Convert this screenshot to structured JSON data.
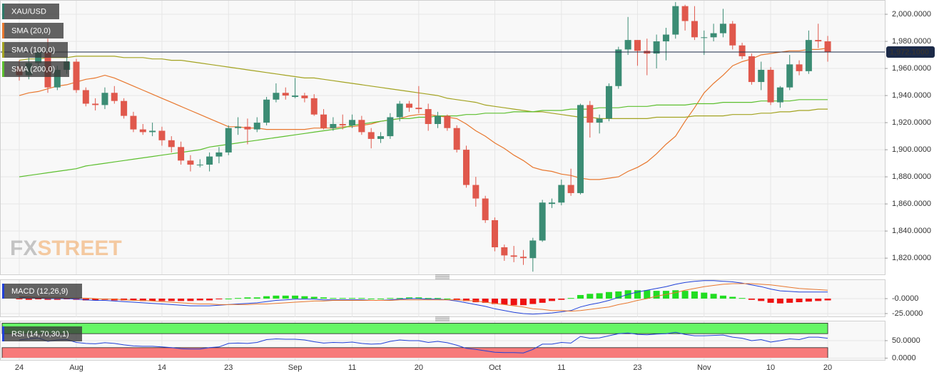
{
  "chart_data": [
    {
      "type": "candlestick",
      "name": "XAU/USD",
      "watermark": [
        "FX",
        "STREET"
      ],
      "categories": [
        "24",
        null,
        null,
        null,
        null,
        null,
        "Aug",
        null,
        null,
        null,
        null,
        null,
        null,
        null,
        null,
        "14",
        null,
        null,
        null,
        null,
        null,
        null,
        "23",
        null,
        null,
        null,
        null,
        null,
        null,
        "Sep",
        null,
        null,
        null,
        null,
        null,
        "11",
        null,
        null,
        null,
        null,
        null,
        null,
        "20",
        null,
        null,
        null,
        null,
        null,
        null,
        null,
        "Oct",
        null,
        null,
        null,
        null,
        null,
        null,
        "11",
        null,
        null,
        null,
        null,
        null,
        null,
        null,
        "23",
        null,
        null,
        null,
        null,
        null,
        null,
        "Nov",
        null,
        null,
        null,
        null,
        null,
        null,
        "10",
        null,
        null,
        null,
        null,
        null,
        "20"
      ],
      "open": [
        1961,
        1955,
        1964,
        1972,
        1946,
        1959,
        1965,
        1944,
        1934,
        1933,
        1942,
        1936,
        1925,
        1915,
        1913,
        1914,
        1907,
        1902,
        1892,
        1889,
        1889,
        1895,
        1898,
        1916,
        1917,
        1915,
        1920,
        1937,
        1942,
        1939,
        1940,
        1938,
        1926,
        1916,
        1919,
        1918,
        1922,
        1913,
        1908,
        1910,
        1924,
        1934,
        1931,
        1930,
        1919,
        1925,
        1916,
        1900,
        1874,
        1864,
        1848,
        1828,
        1822,
        1821,
        1820,
        1833,
        1860,
        1861,
        1874,
        1868,
        1933,
        1920,
        1923,
        1947,
        1974,
        1981,
        1973,
        1971,
        1980,
        1985,
        2006,
        1995,
        1983,
        1983,
        1986,
        1993,
        1977,
        1969,
        1950,
        1959,
        1935,
        1946,
        1963,
        1958,
        1981,
        1980
      ],
      "high": [
        1966,
        1968,
        1975,
        1982,
        1962,
        1968,
        1967,
        1946,
        1938,
        1946,
        1947,
        1938,
        1928,
        1919,
        1920,
        1917,
        1910,
        1906,
        1896,
        1893,
        1898,
        1902,
        1918,
        1924,
        1923,
        1924,
        1939,
        1949,
        1946,
        1953,
        1942,
        1941,
        1930,
        1924,
        1926,
        1926,
        1925,
        1916,
        1913,
        1927,
        1936,
        1936,
        1947,
        1934,
        1928,
        1926,
        1918,
        1903,
        1880,
        1866,
        1850,
        1830,
        1829,
        1826,
        1835,
        1863,
        1864,
        1878,
        1886,
        1934,
        1936,
        1926,
        1949,
        1976,
        1998,
        1981,
        1982,
        1985,
        1990,
        2009,
        2007,
        2006,
        1988,
        1993,
        2004,
        1995,
        1979,
        1971,
        1965,
        1961,
        1947,
        1970,
        1966,
        1988,
        1993,
        1984
      ],
      "low": [
        1951,
        1952,
        1960,
        1942,
        1944,
        1956,
        1942,
        1932,
        1929,
        1930,
        1934,
        1923,
        1913,
        1911,
        1910,
        1903,
        1898,
        1889,
        1884,
        1887,
        1884,
        1890,
        1896,
        1911,
        1904,
        1913,
        1918,
        1935,
        1937,
        1938,
        1935,
        1925,
        1915,
        1914,
        1915,
        1916,
        1911,
        1901,
        1905,
        1908,
        1921,
        1928,
        1927,
        1914,
        1916,
        1914,
        1898,
        1872,
        1858,
        1846,
        1825,
        1818,
        1817,
        1815,
        1810,
        1832,
        1857,
        1859,
        1866,
        1867,
        1909,
        1912,
        1921,
        1945,
        1970,
        1962,
        1955,
        1960,
        1966,
        1982,
        1988,
        1981,
        1970,
        1980,
        1983,
        1974,
        1967,
        1948,
        1944,
        1933,
        1931,
        1944,
        1955,
        1956,
        1975,
        1965
      ],
      "close": [
        1955,
        1964,
        1972,
        1946,
        1959,
        1965,
        1944,
        1934,
        1933,
        1942,
        1936,
        1925,
        1915,
        1913,
        1914,
        1907,
        1902,
        1892,
        1889,
        1889,
        1895,
        1898,
        1916,
        1917,
        1915,
        1920,
        1937,
        1942,
        1940,
        1940,
        1938,
        1926,
        1916,
        1919,
        1918,
        1922,
        1913,
        1908,
        1910,
        1924,
        1934,
        1931,
        1930,
        1919,
        1925,
        1916,
        1900,
        1874,
        1864,
        1848,
        1828,
        1822,
        1821,
        1820,
        1833,
        1861,
        1861,
        1874,
        1868,
        1933,
        1920,
        1923,
        1947,
        1974,
        1981,
        1973,
        1971,
        1980,
        1985,
        2006,
        1995,
        1983,
        1983,
        1986,
        1993,
        1977,
        1969,
        1950,
        1959,
        1935,
        1946,
        1963,
        1958,
        1981,
        1980,
        1972
      ],
      "up_color": "#3b8c74",
      "down_color": "#e0584c",
      "color": "#2d7a68",
      "series": [
        {
          "name": "SMA (20,0)",
          "color": "#e8772e",
          "values": [
            1940,
            1942,
            1943,
            1945,
            1947,
            1948,
            1950,
            1952,
            1953,
            1955,
            1953,
            1950,
            1947,
            1944,
            1941,
            1938,
            1935,
            1932,
            1929,
            1926,
            1923,
            1920,
            1917,
            1917,
            1916,
            1916,
            1915,
            1915,
            1915,
            1915,
            1915,
            1916,
            1916,
            1916,
            1917,
            1917,
            1918,
            1919,
            1921,
            1922,
            1923,
            1925,
            1926,
            1926,
            1925,
            1924,
            1923,
            1919,
            1914,
            1910,
            1905,
            1901,
            1896,
            1892,
            1887,
            1885,
            1884,
            1882,
            1881,
            1879,
            1878,
            1878,
            1879,
            1880,
            1884,
            1887,
            1891,
            1897,
            1904,
            1910,
            1921,
            1931,
            1942,
            1949,
            1955,
            1962,
            1965,
            1967,
            1970,
            1971,
            1972,
            1973,
            1973,
            1974,
            1974,
            1975
          ]
        },
        {
          "name": "SMA (100,0)",
          "color": "#a3a321",
          "values": [
            1966,
            1967,
            1967,
            1968,
            1968,
            1968,
            1969,
            1969,
            1969,
            1969,
            1969,
            1968,
            1968,
            1968,
            1967,
            1967,
            1966,
            1966,
            1965,
            1964,
            1963,
            1962,
            1961,
            1960,
            1959,
            1958,
            1957,
            1956,
            1955,
            1954,
            1953,
            1953,
            1952,
            1951,
            1950,
            1949,
            1948,
            1947,
            1946,
            1945,
            1944,
            1943,
            1942,
            1941,
            1940,
            1938,
            1937,
            1936,
            1935,
            1933,
            1932,
            1931,
            1930,
            1929,
            1928,
            1928,
            1927,
            1926,
            1925,
            1924,
            1924,
            1923,
            1923,
            1923,
            1923,
            1923,
            1923,
            1924,
            1924,
            1924,
            1924,
            1925,
            1925,
            1925,
            1925,
            1926,
            1926,
            1926,
            1927,
            1927,
            1928,
            1928,
            1929,
            1929,
            1930,
            1930
          ]
        },
        {
          "name": "SMA (200,0)",
          "color": "#5cbf2e",
          "values": [
            1880,
            1881,
            1882,
            1883,
            1884,
            1885,
            1886,
            1888,
            1889,
            1890,
            1891,
            1892,
            1893,
            1894,
            1895,
            1896,
            1897,
            1898,
            1899,
            1900,
            1902,
            1903,
            1904,
            1905,
            1906,
            1907,
            1908,
            1909,
            1910,
            1911,
            1912,
            1913,
            1914,
            1915,
            1916,
            1918,
            1919,
            1920,
            1921,
            1922,
            1923,
            1923,
            1924,
            1924,
            1925,
            1925,
            1925,
            1926,
            1926,
            1927,
            1927,
            1927,
            1928,
            1928,
            1928,
            1929,
            1929,
            1929,
            1930,
            1930,
            1930,
            1931,
            1931,
            1931,
            1932,
            1932,
            1932,
            1933,
            1933,
            1933,
            1933,
            1934,
            1934,
            1934,
            1935,
            1935,
            1935,
            1935,
            1936,
            1936,
            1936,
            1936,
            1937,
            1937,
            1937,
            1937
          ]
        }
      ],
      "ylim": [
        1808,
        2010
      ],
      "yticks": [
        {
          "value": 1820,
          "label": "1,820.0000"
        },
        {
          "value": 1840,
          "label": "1,840.0000"
        },
        {
          "value": 1860,
          "label": "1,860.0000"
        },
        {
          "value": 1880,
          "label": "1,880.0000"
        },
        {
          "value": 1900,
          "label": "1,900.0000"
        },
        {
          "value": 1920,
          "label": "1,920.0000"
        },
        {
          "value": 1940,
          "label": "1,940.0000"
        },
        {
          "value": 1960,
          "label": "1,960.0000"
        },
        {
          "value": 1980,
          "label": "1,980.0000"
        },
        {
          "value": 2000,
          "label": "2,000.0000"
        }
      ],
      "last_price": {
        "value": 1972.1,
        "label": "1,972.1000",
        "color": "#1c2a48"
      },
      "grid": true
    },
    {
      "type": "macd",
      "title": "MACD (12,26,9)",
      "color": "#2040d8",
      "lines": [
        {
          "color": "#2040d8",
          "values": [
            2,
            1,
            1,
            0,
            0,
            0,
            -1,
            -2,
            -3,
            -3,
            -4,
            -5,
            -6,
            -7,
            -8,
            -9,
            -10,
            -11,
            -12,
            -12,
            -12,
            -11,
            -10,
            -9,
            -8,
            -7,
            -5,
            -3,
            -2,
            -1,
            -1,
            -1,
            -2,
            -2,
            -2,
            -2,
            -2,
            -3,
            -3,
            -2,
            -1,
            0,
            0,
            -1,
            -1,
            -2,
            -4,
            -7,
            -10,
            -13,
            -17,
            -20,
            -23,
            -25,
            -26,
            -25,
            -24,
            -22,
            -20,
            -14,
            -10,
            -7,
            -3,
            2,
            7,
            11,
            14,
            17,
            20,
            24,
            27,
            29,
            30,
            30,
            29,
            28,
            26,
            23,
            20,
            16,
            13,
            12,
            11,
            11,
            11,
            11
          ]
        },
        {
          "color": "#e8772e",
          "values": [
            3,
            3,
            2,
            2,
            2,
            1,
            1,
            1,
            0,
            -1,
            -1,
            -2,
            -3,
            -3,
            -4,
            -5,
            -6,
            -7,
            -8,
            -9,
            -9,
            -10,
            -10,
            -10,
            -10,
            -9,
            -9,
            -8,
            -7,
            -6,
            -5,
            -4,
            -4,
            -3,
            -3,
            -3,
            -3,
            -3,
            -3,
            -3,
            -2,
            -2,
            -2,
            -2,
            -2,
            -2,
            -2,
            -3,
            -4,
            -6,
            -8,
            -10,
            -12,
            -14,
            -17,
            -18,
            -20,
            -20,
            -21,
            -20,
            -18,
            -16,
            -14,
            -10,
            -7,
            -3,
            0,
            4,
            7,
            10,
            14,
            17,
            20,
            22,
            24,
            25,
            25,
            25,
            24,
            23,
            21,
            19,
            17,
            16,
            15,
            14
          ]
        }
      ],
      "histogram": {
        "up_color": "#22dd22",
        "down_color": "#ee1111",
        "values": [
          -1,
          -2,
          -1,
          -2,
          -2,
          -1,
          -2,
          -3,
          -3,
          -2,
          -3,
          -3,
          -3,
          -4,
          -4,
          -4,
          -4,
          -4,
          -4,
          -3,
          -3,
          -1,
          0,
          1,
          2,
          2,
          4,
          5,
          5,
          5,
          4,
          3,
          2,
          1,
          1,
          1,
          1,
          0,
          0,
          1,
          1,
          2,
          2,
          1,
          1,
          0,
          -2,
          -4,
          -6,
          -7,
          -9,
          -10,
          -11,
          -11,
          -9,
          -7,
          -4,
          -2,
          1,
          6,
          8,
          9,
          11,
          12,
          14,
          14,
          14,
          13,
          13,
          14,
          13,
          12,
          10,
          8,
          5,
          3,
          1,
          -2,
          -4,
          -7,
          -8,
          -7,
          -6,
          -5,
          -4,
          -3
        ]
      },
      "ylim": [
        -31,
        31
      ],
      "yticks": [
        {
          "value": 0,
          "label": "-0.0000"
        },
        {
          "value": -25,
          "label": "-25.0000"
        }
      ]
    },
    {
      "type": "rsi",
      "title": "RSI (14,70,30,1)",
      "color": "#2040d8",
      "values": [
        52,
        55,
        58,
        48,
        52,
        53,
        45,
        42,
        41,
        44,
        42,
        38,
        35,
        34,
        34,
        32,
        30,
        27,
        26,
        26,
        30,
        32,
        42,
        43,
        42,
        45,
        53,
        55,
        54,
        54,
        52,
        47,
        43,
        45,
        44,
        46,
        42,
        40,
        41,
        48,
        52,
        50,
        50,
        45,
        48,
        44,
        37,
        28,
        25,
        21,
        17,
        16,
        16,
        15,
        25,
        40,
        40,
        45,
        43,
        62,
        57,
        58,
        64,
        70,
        72,
        68,
        67,
        69,
        70,
        74,
        68,
        64,
        64,
        65,
        66,
        60,
        57,
        50,
        53,
        46,
        50,
        55,
        53,
        60,
        60,
        57
      ],
      "bands": [
        {
          "from": 70,
          "to": 100,
          "color": "#66f766"
        },
        {
          "from": 0,
          "to": 30,
          "color": "#f77a7a"
        }
      ],
      "ylim": [
        -5,
        105
      ],
      "yticks": [
        {
          "value": 50,
          "label": "50.0000"
        },
        {
          "value": 0,
          "label": "0.0000"
        }
      ]
    }
  ]
}
